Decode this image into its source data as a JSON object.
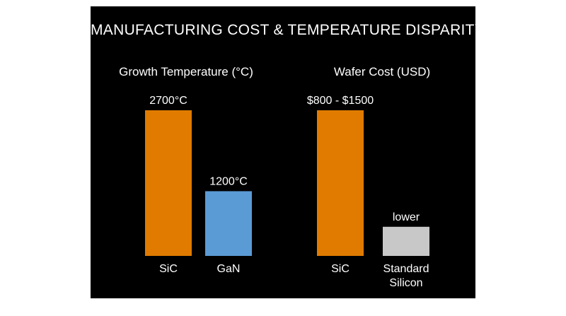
{
  "title": "MANUFACTURING COST & TEMPERATURE DISPARITY",
  "colors": {
    "background": "#000000",
    "sic": "#e07b00",
    "gan": "#5b9bd5",
    "silicon": "#c8c8c8"
  },
  "chart_data": [
    {
      "type": "bar",
      "title": "Growth Temperature (°C)",
      "categories": [
        "SiC",
        "GaN"
      ],
      "values": [
        2700,
        1200
      ],
      "data_labels": [
        "2700°C",
        "1200°C"
      ],
      "ylim": [
        0,
        2700
      ],
      "grid": false
    },
    {
      "type": "bar",
      "title": "Wafer Cost (USD)",
      "categories": [
        "SiC",
        "Standard Silicon"
      ],
      "category_lines": [
        [
          "SiC"
        ],
        [
          "Standard",
          "Silicon"
        ]
      ],
      "values": [
        1500,
        300
      ],
      "data_labels": [
        "$800 - $1500",
        "lower"
      ],
      "ylim": [
        0,
        1500
      ],
      "grid": false
    }
  ]
}
